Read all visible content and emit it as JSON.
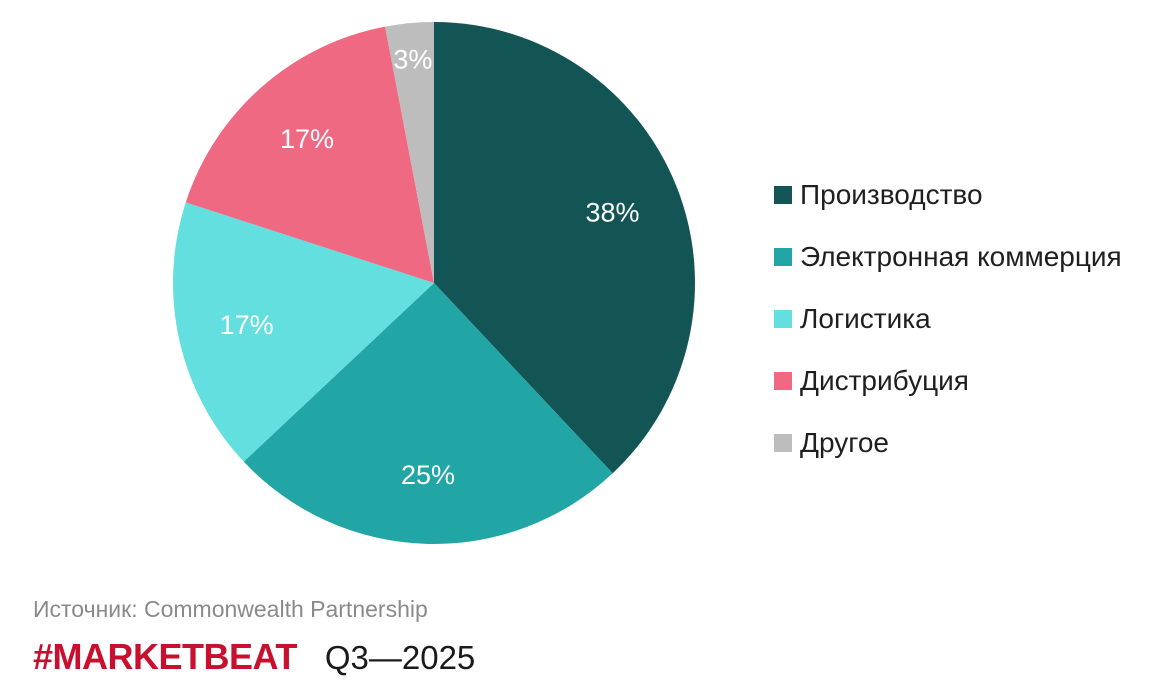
{
  "chart_data": {
    "type": "pie",
    "title": "",
    "unit": "%",
    "categories": [
      "Производство",
      "Электронная коммерция",
      "Логистика",
      "Дистрибуция",
      "Другое"
    ],
    "values": [
      38,
      25,
      17,
      17,
      3
    ],
    "data_labels": [
      "38%",
      "25%",
      "17%",
      "17%",
      "3%"
    ],
    "colors": [
      "#135455",
      "#22a5a5",
      "#63dfdf",
      "#f06982",
      "#bdbdbd"
    ],
    "start_angle": "12 o'clock",
    "direction": "clockwise",
    "legend_position": "right"
  },
  "legend": {
    "items": [
      {
        "label": "Производство",
        "color": "#135455"
      },
      {
        "label": "Электронная коммерция",
        "color": "#22a5a5"
      },
      {
        "label": "Логистика",
        "color": "#63dfdf"
      },
      {
        "label": "Дистрибуция",
        "color": "#f06982"
      },
      {
        "label": "Другое",
        "color": "#bdbdbd"
      }
    ]
  },
  "footer": {
    "source": "Источник: Commonwealth Partnership",
    "brand": "#MARKETBEAT",
    "brand_color": "#c8102e",
    "period": "Q3—2025"
  }
}
